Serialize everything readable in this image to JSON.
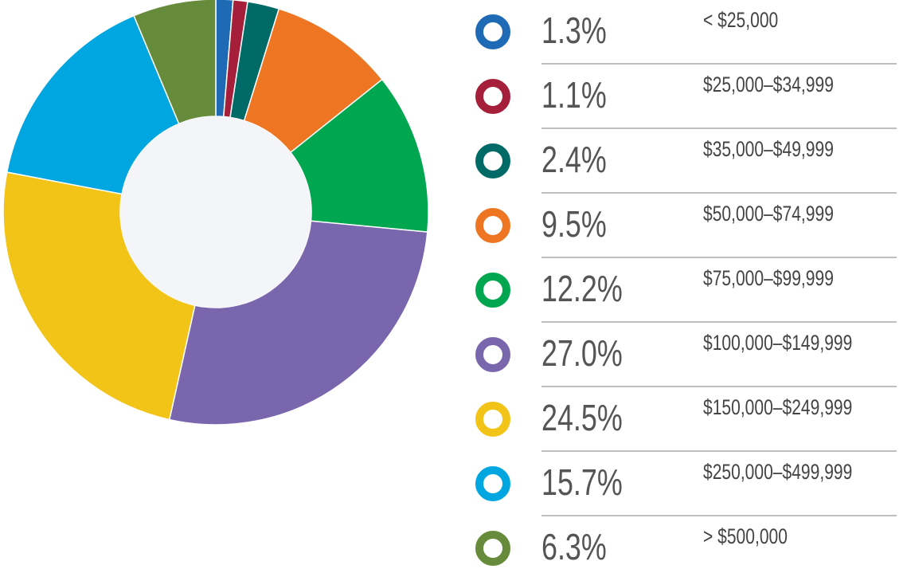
{
  "chart_data": {
    "type": "donut",
    "categories": [
      "< $25,000",
      "$25,000–$34,999",
      "$35,000–$49,999",
      "$50,000–$74,999",
      "$75,000–$99,999",
      "$100,000–$149,999",
      "$150,000–$249,999",
      "$250,000–$499,999",
      "> $500,000"
    ],
    "values": [
      1.3,
      1.1,
      2.4,
      9.5,
      12.2,
      27,
      24.5,
      15.7,
      6.3
    ],
    "value_labels": [
      "1.3%",
      "1.1%",
      "2.4%",
      "9.5%",
      "12.2%",
      "27.0%",
      "24.5%",
      "15.7%",
      "6.3%"
    ],
    "colors": [
      "#1f6ab5",
      "#a51f3b",
      "#006b66",
      "#ee7623",
      "#00a650",
      "#7a66ad",
      "#f2c418",
      "#00a6e0",
      "#668b3b"
    ]
  }
}
